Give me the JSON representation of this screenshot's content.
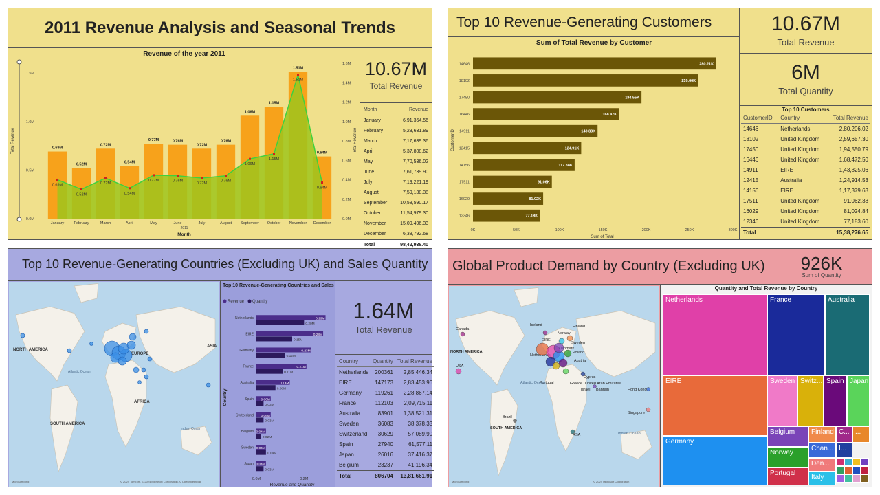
{
  "q1": {
    "title": "2011 Revenue Analysis and Seasonal Trends",
    "kpi_value": "10.67M",
    "kpi_label": "Total Revenue",
    "table_headers": [
      "Month",
      "Revenue"
    ],
    "table_rows": [
      [
        "January",
        "6,91,364.56"
      ],
      [
        "February",
        "5,23,631.89"
      ],
      [
        "March",
        "7,17,639.36"
      ],
      [
        "April",
        "5,37,808.62"
      ],
      [
        "May",
        "7,70,536.02"
      ],
      [
        "June",
        "7,61,739.90"
      ],
      [
        "July",
        "7,19,221.19"
      ],
      [
        "August",
        "7,59,138.38"
      ],
      [
        "September",
        "10,58,590.17"
      ],
      [
        "October",
        "11,54,979.30"
      ],
      [
        "November",
        "15,09,496.33"
      ],
      [
        "December",
        "6,38,792.68"
      ]
    ],
    "table_total": [
      "Total",
      "98,42,938.40"
    ]
  },
  "q2": {
    "title": "Top 10 Revenue-Generating Customers",
    "kpi1_value": "10.67M",
    "kpi1_label": "Total Revenue",
    "kpi2_value": "6M",
    "kpi2_label": "Total Quantity",
    "table_title": "Top 10 Customers",
    "table_headers": [
      "CustomerID",
      "Country",
      "Total Revenue"
    ],
    "table_rows": [
      [
        "14646",
        "Netherlands",
        "2,80,206.02"
      ],
      [
        "18102",
        "United Kingdom",
        "2,59,657.30"
      ],
      [
        "17450",
        "United Kingdom",
        "1,94,550.79"
      ],
      [
        "16446",
        "United Kingdom",
        "1,68,472.50"
      ],
      [
        "14911",
        "EIRE",
        "1,43,825.06"
      ],
      [
        "12415",
        "Australia",
        "1,24,914.53"
      ],
      [
        "14156",
        "EIRE",
        "1,17,379.63"
      ],
      [
        "17511",
        "United Kingdom",
        "91,062.38"
      ],
      [
        "16029",
        "United Kingdom",
        "81,024.84"
      ],
      [
        "12346",
        "United Kingdom",
        "77,183.60"
      ]
    ],
    "table_total": [
      "Total",
      "",
      "15,38,276.65"
    ]
  },
  "q3": {
    "title": "Top 10 Revenue-Generating Countries (Excluding UK) and Sales Quantity",
    "kpi_value": "1.64M",
    "kpi_label": "Total Revenue",
    "table_headers": [
      "Country",
      "Quantity",
      "Total Revenue"
    ],
    "table_rows": [
      [
        "Netherlands",
        "200361",
        "2,85,446.34"
      ],
      [
        "EIRE",
        "147173",
        "2,83,453.96"
      ],
      [
        "Germany",
        "119261",
        "2,28,867.14"
      ],
      [
        "France",
        "112103",
        "2,09,715.11"
      ],
      [
        "Australia",
        "83901",
        "1,38,521.31"
      ],
      [
        "Sweden",
        "36083",
        "38,378.33"
      ],
      [
        "Switzerland",
        "30629",
        "57,089.90"
      ],
      [
        "Spain",
        "27940",
        "61,577.11"
      ],
      [
        "Japan",
        "26016",
        "37,416.37"
      ],
      [
        "Belgium",
        "23237",
        "41,196.34"
      ]
    ],
    "table_total": [
      "Total",
      "806704",
      "13,81,661.91"
    ],
    "map_labels": [
      "NORTH AMERICA",
      "EUROPE",
      "ASIA",
      "AFRICA",
      "SOUTH AMERICA",
      "Atlantic Ocean",
      "Indian Ocean"
    ],
    "map_credit": "© 2024 TomTom, © 2024 Microsoft Corporation, © OpenStreetMap",
    "bing": "Microsoft Bing"
  },
  "q4": {
    "title": "Global Product Demand by Country (Excluding UK)",
    "kpi_value": "926K",
    "kpi_label": "Sum of Quantity",
    "treemap_title": "Quantity and Total Revenue by Country",
    "map_labels": [
      "Canada",
      "USA",
      "NORTH AMERICA",
      "Iceland",
      "Finland",
      "Norway",
      "Sweden",
      "EIRE",
      "Denmark",
      "Poland",
      "Netherlands",
      "Austria",
      "Portugal",
      "Cyprus",
      "Greece",
      "Israel",
      "United Arab Emirates",
      "Bahrain",
      "Hong Kong",
      "Singapore",
      "Brazil",
      "SOUTH AMERICA",
      "RSA",
      "Atlantic Ocean",
      "Indian Ocean"
    ],
    "map_credit": "© 2024 Microsoft Corporation",
    "bing": "Microsoft Bing"
  },
  "colors": {
    "q1_bg": "#f0e08c",
    "bar_orange": "#f7a21b",
    "bar_green": "#9fc41c",
    "line_green": "#3ed13e",
    "q2_bar": "#6b5607",
    "q3_bg": "#a7a9e0",
    "q3_rev": "#4b2d8a",
    "q3_qty": "#2c1a5c",
    "q4_bg": "#ec9da2"
  },
  "chart_data": [
    {
      "type": "bar",
      "title": "Revenue of the year 2011",
      "xlabel": "Month",
      "ylabel": "Total Revenue",
      "y2label": "Total Revenue",
      "axis_note": "2011",
      "ylim": [
        0,
        1.6
      ],
      "y_ticks": [
        "0.0M",
        "0.5M",
        "1.0M",
        "1.5M"
      ],
      "y2_ticks": [
        "0.0M",
        "0.2M",
        "0.4M",
        "0.6M",
        "0.8M",
        "1.0M",
        "1.2M",
        "1.4M",
        "1.6M"
      ],
      "categories": [
        "January",
        "February",
        "March",
        "April",
        "May",
        "June",
        "July",
        "August",
        "September",
        "October",
        "November",
        "December"
      ],
      "values": [
        0.69,
        0.52,
        0.72,
        0.54,
        0.77,
        0.76,
        0.72,
        0.76,
        1.06,
        1.15,
        1.51,
        0.64
      ],
      "labels": [
        "0.69M",
        "0.52M",
        "0.72M",
        "0.54M",
        "0.77M",
        "0.76M",
        "0.72M",
        "0.76M",
        "1.06M",
        "1.15M",
        "1.51M",
        "0.64M"
      ]
    },
    {
      "type": "bar",
      "orientation": "horizontal",
      "title": "Sum of Total Revenue by Customer",
      "xlabel": "Sum of Total",
      "ylabel": "CustomerID",
      "xlim": [
        0,
        300000
      ],
      "x_ticks": [
        "0K",
        "50K",
        "100K",
        "150K",
        "200K",
        "250K",
        "300K"
      ],
      "categories": [
        "14646",
        "18102",
        "17450",
        "16446",
        "14911",
        "12415",
        "14156",
        "17511",
        "16029",
        "12346"
      ],
      "values": [
        280210,
        259660,
        194550,
        168470,
        143830,
        124910,
        117380,
        91060,
        81020,
        77180
      ],
      "labels": [
        "280.21K",
        "259.66K",
        "194.55K",
        "168.47K",
        "143.83K",
        "124.91K",
        "117.38K",
        "91.06K",
        "81.02K",
        "77.18K"
      ]
    },
    {
      "type": "bar",
      "orientation": "horizontal",
      "title": "Top 10 Revenue-Generating Countries and Sales Quantity",
      "xlabel": "Revenue and Quantity",
      "ylabel": "Country",
      "xlim": [
        0,
        0.3
      ],
      "x_ticks": [
        "0.0M",
        "0.2M"
      ],
      "categories": [
        "Netherlands",
        "EIRE",
        "Germany",
        "France",
        "Australia",
        "Spain",
        "Switzerland",
        "Belgium",
        "Sweden",
        "Japan"
      ],
      "series": [
        {
          "name": "Revenue",
          "values": [
            0.29,
            0.28,
            0.23,
            0.21,
            0.14,
            0.06,
            0.06,
            0.04,
            0.04,
            0.04
          ],
          "labels": [
            "0.29M",
            "0.28M",
            "0.23M",
            "0.21M",
            "0.14M",
            "0.06M",
            "0.06M",
            "0.04M",
            "0.04M",
            "0.04M"
          ]
        },
        {
          "name": "Quantity",
          "values": [
            0.2,
            0.15,
            0.12,
            0.11,
            0.08,
            0.03,
            0.03,
            0.02,
            0.04,
            0.03
          ],
          "labels": [
            "0.20M",
            "0.15M",
            "0.12M",
            "0.11M",
            "0.08M",
            "0.03M",
            "0.03M",
            "0.02M",
            "0.04M",
            "0.03M"
          ]
        }
      ]
    },
    {
      "type": "treemap",
      "title": "Quantity and Total Revenue by Country",
      "items": [
        {
          "name": "Netherlands",
          "label": "Netherlands",
          "color": "#e040a8"
        },
        {
          "name": "France",
          "label": "France",
          "color": "#1a2a9a"
        },
        {
          "name": "Australia",
          "label": "Australia",
          "color": "#1a6b74"
        },
        {
          "name": "EIRE",
          "label": "EIRE",
          "color": "#e86a3a"
        },
        {
          "name": "Sweden",
          "label": "Sweden",
          "color": "#f07ac8"
        },
        {
          "name": "Switzerland",
          "label": "Switz...",
          "color": "#d9b10a"
        },
        {
          "name": "Spain",
          "label": "Spain",
          "color": "#6a0a7a"
        },
        {
          "name": "Japan",
          "label": "Japan",
          "color": "#5ad45a"
        },
        {
          "name": "Germany",
          "label": "Germany",
          "color": "#1e90f0"
        },
        {
          "name": "Belgium",
          "label": "Belgium",
          "color": "#7a44b8"
        },
        {
          "name": "Finland",
          "label": "Finland",
          "color": "#f08a4a"
        },
        {
          "name": "C...",
          "label": "C...",
          "color": "#a0288a"
        },
        {
          "name": "...",
          "label": "...",
          "color": "#e8872a"
        },
        {
          "name": "Norway",
          "label": "Norway",
          "color": "#2aa02a"
        },
        {
          "name": "Chan...",
          "label": "Chan...",
          "color": "#3a6ad8"
        },
        {
          "name": "I...",
          "label": "I...",
          "color": "#2040a0"
        },
        {
          "name": "Den...",
          "label": "Den...",
          "color": "#f07a7a"
        },
        {
          "name": "Portugal",
          "label": "Portugal",
          "color": "#d0304a"
        },
        {
          "name": "Italy",
          "label": "Italy",
          "color": "#2ac0e8"
        }
      ]
    }
  ]
}
